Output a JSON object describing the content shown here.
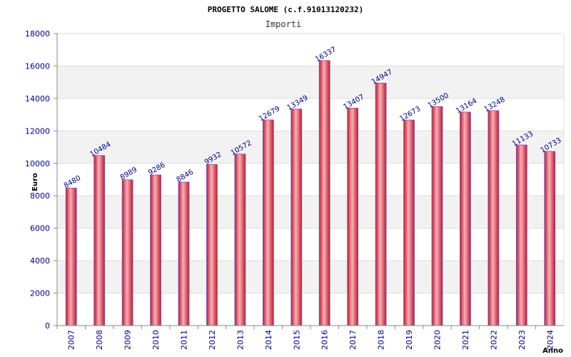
{
  "chart_data": {
    "type": "bar",
    "title": "PROGETTO SALOME (c.f.91013120232)",
    "subtitle": "Importi",
    "xlabel": "Anno",
    "ylabel": "Euro",
    "categories": [
      "2007",
      "2008",
      "2009",
      "2010",
      "2011",
      "2012",
      "2013",
      "2014",
      "2015",
      "2016",
      "2017",
      "2018",
      "2019",
      "2020",
      "2021",
      "2022",
      "2023",
      "2024"
    ],
    "values": [
      8480,
      10484,
      8989,
      9286,
      8846,
      9932,
      10572,
      12679,
      13349,
      16337,
      13407,
      14947,
      12673,
      13500,
      13164,
      13248,
      11133,
      10733
    ],
    "ylim": [
      0,
      18000
    ],
    "yticks": [
      0,
      2000,
      4000,
      6000,
      8000,
      10000,
      12000,
      14000,
      16000,
      18000
    ],
    "grid": true,
    "colors": {
      "bar": "#e03040",
      "bar_highlight": "#f8b0b8",
      "bar_edge": "#6a5acd",
      "band": "#f2f2f2",
      "grid": "#dddddd",
      "axis": "#888888",
      "label": "#00008b"
    }
  }
}
